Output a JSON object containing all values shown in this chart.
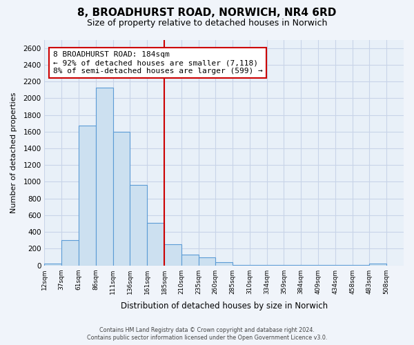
{
  "title": "8, BROADHURST ROAD, NORWICH, NR4 6RD",
  "subtitle": "Size of property relative to detached houses in Norwich",
  "xlabel": "Distribution of detached houses by size in Norwich",
  "ylabel": "Number of detached properties",
  "bin_labels": [
    "12sqm",
    "37sqm",
    "61sqm",
    "86sqm",
    "111sqm",
    "136sqm",
    "161sqm",
    "185sqm",
    "210sqm",
    "235sqm",
    "260sqm",
    "285sqm",
    "310sqm",
    "334sqm",
    "359sqm",
    "384sqm",
    "409sqm",
    "434sqm",
    "458sqm",
    "483sqm",
    "508sqm"
  ],
  "bar_values": [
    20,
    300,
    1670,
    2130,
    1600,
    960,
    510,
    250,
    130,
    100,
    40,
    5,
    5,
    5,
    5,
    5,
    5,
    5,
    5,
    20,
    0
  ],
  "bar_color": "#cce0f0",
  "bar_edge_color": "#5b9bd5",
  "vline_x_index": 7,
  "vline_color": "#cc0000",
  "annotation_title": "8 BROADHURST ROAD: 184sqm",
  "annotation_line1": "← 92% of detached houses are smaller (7,118)",
  "annotation_line2": "8% of semi-detached houses are larger (599) →",
  "annotation_box_facecolor": "#ffffff",
  "annotation_box_edgecolor": "#cc0000",
  "ylim": [
    0,
    2700
  ],
  "yticks": [
    0,
    200,
    400,
    600,
    800,
    1000,
    1200,
    1400,
    1600,
    1800,
    2000,
    2200,
    2400,
    2600
  ],
  "footer_line1": "Contains HM Land Registry data © Crown copyright and database right 2024.",
  "footer_line2": "Contains public sector information licensed under the Open Government Licence v3.0.",
  "bg_color": "#f0f4fa",
  "plot_bg_color": "#e8f0f8",
  "grid_color": "#c8d4e8"
}
